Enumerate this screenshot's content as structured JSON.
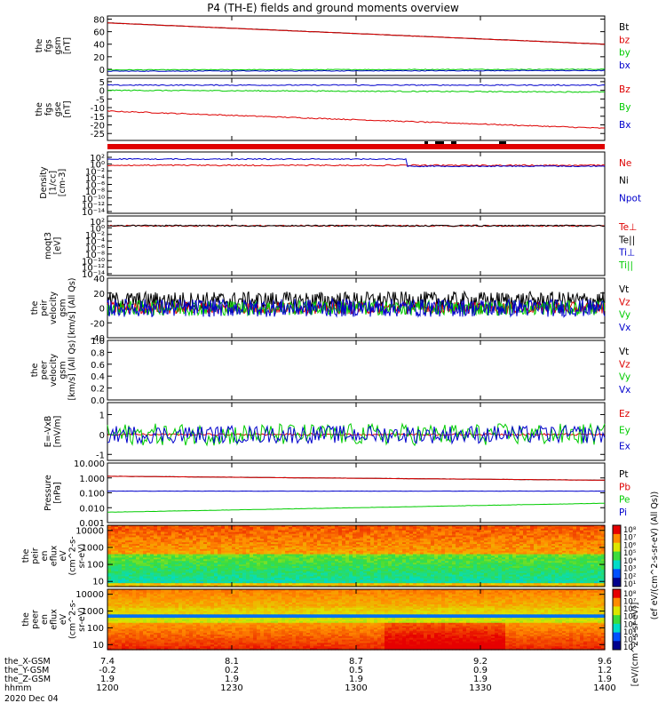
{
  "title": "P4 (TH-E) fields and ground moments overview",
  "colors": {
    "black": "#000000",
    "red": "#dd0000",
    "green": "#00cc00",
    "blue": "#0000cc"
  },
  "chart_data": [
    {
      "type": "line",
      "name": "fgs_gsm",
      "ylabel": [
        "the",
        "fgs",
        "gsm",
        "[nT]"
      ],
      "ylim": [
        -10,
        85
      ],
      "yticks": [
        0,
        20,
        40,
        60,
        80
      ],
      "series": [
        {
          "name": "Bt",
          "color": "black",
          "start": 74,
          "end": 40,
          "noise": 0.3
        },
        {
          "name": "bz",
          "color": "red",
          "start": 74,
          "end": 40,
          "noise": 0.3
        },
        {
          "name": "by",
          "color": "green",
          "start": -1,
          "end": 0,
          "noise": 0.6
        },
        {
          "name": "bx",
          "color": "blue",
          "start": -3,
          "end": -2,
          "noise": 0.6
        }
      ]
    },
    {
      "type": "line",
      "name": "fgs_gse",
      "ylabel": [
        "the",
        "fgs",
        "gse",
        "[nT]"
      ],
      "ylim": [
        -29,
        7
      ],
      "yticks": [
        5,
        0,
        -5,
        -10,
        -15,
        -20,
        -25
      ],
      "series": [
        {
          "name": "Bz",
          "color": "red",
          "start": -12,
          "end": -22,
          "noise": 0.3
        },
        {
          "name": "By",
          "color": "green",
          "start": 0,
          "end": -1,
          "noise": 0.3
        },
        {
          "name": "Bx",
          "color": "blue",
          "start": 3,
          "end": 3,
          "noise": 0.3
        }
      ]
    },
    {
      "type": "line",
      "name": "density",
      "ylabel": [
        "Density",
        "[1/cc]",
        "[cm-3]"
      ],
      "ylog": true,
      "ylim": [
        1e-14,
        1000.0
      ],
      "yticks_exp": [
        "10²",
        "10⁰",
        "10⁻²",
        "10⁻⁴",
        "10⁻⁶",
        "10⁻⁸",
        "10⁻¹⁰",
        "10⁻¹²",
        "10⁻¹⁴"
      ],
      "series": [
        {
          "name": "Ne",
          "color": "red"
        },
        {
          "name": "Ni",
          "color": "black"
        },
        {
          "name": "Npot",
          "color": "blue"
        }
      ]
    },
    {
      "type": "line",
      "name": "temperature",
      "ylabel": [
        "moqt3",
        "[eV]"
      ],
      "ylog": true,
      "ylim": [
        1e-14,
        1000.0
      ],
      "yticks_exp": [
        "10²",
        "10⁰",
        "10⁻²",
        "10⁻⁴",
        "10⁻⁶",
        "10⁻⁸",
        "10⁻¹⁰",
        "10⁻¹²",
        "10⁻¹⁴"
      ],
      "series": [
        {
          "name": "Te⊥",
          "color": "red"
        },
        {
          "name": "Te||",
          "color": "black"
        },
        {
          "name": "Ti⊥",
          "color": "blue"
        },
        {
          "name": "Ti||",
          "color": "green"
        }
      ]
    },
    {
      "type": "line",
      "name": "peir_velocity",
      "ylabel": [
        "the",
        "peir",
        "velocity",
        "gsm",
        "[km/s] (All Qs)"
      ],
      "ylim": [
        -40,
        40
      ],
      "yticks": [
        40,
        20,
        0,
        -20,
        -40
      ],
      "series": [
        {
          "name": "Vt",
          "color": "black",
          "start": 10,
          "end": 10,
          "noise": 12
        },
        {
          "name": "Vz",
          "color": "red",
          "start": 0,
          "end": 0,
          "noise": 8
        },
        {
          "name": "Vy",
          "color": "green",
          "start": 0,
          "end": 0,
          "noise": 10
        },
        {
          "name": "Vx",
          "color": "blue",
          "start": 0,
          "end": 0,
          "noise": 12
        }
      ]
    },
    {
      "type": "line",
      "name": "peer_velocity",
      "ylabel": [
        "the",
        "peer",
        "velocity",
        "gsm",
        "[km/s] (All Qs)"
      ],
      "ylim": [
        0,
        1
      ],
      "yticks": [
        1.0,
        0.8,
        0.6,
        0.4,
        0.2,
        0.0
      ],
      "series": [
        {
          "name": "Vt",
          "color": "black"
        },
        {
          "name": "Vz",
          "color": "red"
        },
        {
          "name": "Vy",
          "color": "green"
        },
        {
          "name": "Vx",
          "color": "blue"
        }
      ]
    },
    {
      "type": "line",
      "name": "efield",
      "ylabel": [
        "E=-VxB",
        "[mV/m]"
      ],
      "ylim": [
        -1.3,
        1.6
      ],
      "yticks": [
        1,
        0,
        -1
      ],
      "series": [
        {
          "name": "Ez",
          "color": "red",
          "start": 0,
          "end": 0,
          "noise": 0.05
        },
        {
          "name": "Ey",
          "color": "green",
          "start": 0,
          "end": 0,
          "noise": 0.55
        },
        {
          "name": "Ex",
          "color": "blue",
          "start": 0,
          "end": 0,
          "noise": 0.45
        }
      ]
    },
    {
      "type": "line",
      "name": "pressure",
      "ylabel": [
        "Pressure",
        "[nPa]"
      ],
      "ylog": true,
      "ylim": [
        0.001,
        10
      ],
      "yticks": [
        "10.000",
        "1.000",
        "0.100",
        "0.010",
        "0.001"
      ],
      "series": [
        {
          "name": "Pt",
          "color": "black",
          "start": 1.3,
          "end": 0.7
        },
        {
          "name": "Pb",
          "color": "red",
          "start": 1.3,
          "end": 0.7
        },
        {
          "name": "Pe",
          "color": "green",
          "start": 0.005,
          "end": 0.02
        },
        {
          "name": "Pi",
          "color": "blue",
          "start": 0.13,
          "end": 0.13
        }
      ]
    },
    {
      "type": "heatmap",
      "name": "peir_en_eflux",
      "ylabel": [
        "the",
        "peir",
        "en",
        "eflux",
        "eV",
        "(cm^2-s-",
        "sr-eV)"
      ],
      "ylog": true,
      "ylim": [
        5,
        20000
      ],
      "yticks": [
        "10000",
        "1000",
        "100",
        "10"
      ]
    },
    {
      "type": "heatmap",
      "name": "peer_en_eflux",
      "ylabel": [
        "the",
        "peer",
        "en",
        "eflux",
        "eV",
        "(cm^2-s-",
        "sr-eV)"
      ],
      "ylog": true,
      "ylim": [
        5,
        20000
      ],
      "yticks": [
        "10000",
        "1000",
        "100",
        "10"
      ]
    }
  ],
  "colorbar": {
    "label": "[eV/(cm^2-s-sr-eV)]",
    "label_top": "(ef eV/(cm^2-s-sr-eV) (All Qs))",
    "ticks_top": [
      "10⁸",
      "10⁷",
      "10⁶",
      "10⁵",
      "10⁴",
      "10³",
      "10²",
      "10¹"
    ],
    "ticks_bottom": [
      "10⁸",
      "10⁷",
      "10⁶",
      "10⁵",
      "10⁴",
      "10³",
      "10²",
      "10¹"
    ]
  },
  "x_axis": {
    "rows": [
      {
        "label": "the_X-GSM",
        "values": [
          "7.4",
          "8.1",
          "8.7",
          "9.2",
          "9.6"
        ]
      },
      {
        "label": "the_Y-GSM",
        "values": [
          "-0.2",
          "0.2",
          "0.5",
          "0.9",
          "1.2"
        ]
      },
      {
        "label": "the_Z-GSM",
        "values": [
          "1.9",
          "1.9",
          "1.9",
          "1.9",
          "1.9"
        ]
      },
      {
        "label": "hhmm",
        "values": [
          "1200",
          "1230",
          "1300",
          "1330",
          "1400"
        ]
      }
    ],
    "date": "2020 Dec 04"
  }
}
